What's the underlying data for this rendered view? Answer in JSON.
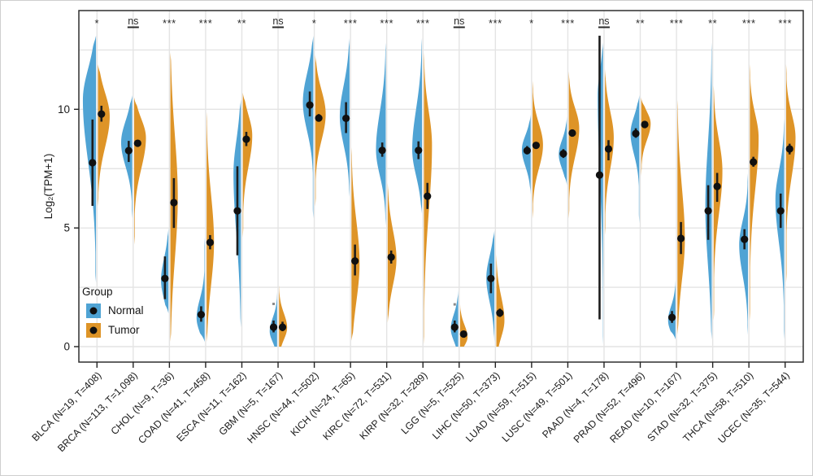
{
  "chart_data": {
    "type": "split-violin",
    "title": "",
    "xlabel": "",
    "ylabel": "Log₂(TPM+1)",
    "yticks": [
      0,
      5,
      10
    ],
    "ylim": [
      -0.65,
      14.2
    ],
    "grid": {
      "horizontal_every": 2.5,
      "vertical_per_group": true,
      "color": "#e4e4e4"
    },
    "point_color": "#101010",
    "outlier_color": "#8a8a8a",
    "legend": {
      "title": "Group",
      "position": "inside-bottom-left",
      "items": [
        {
          "label": "Normal",
          "color": "#4FA3D4"
        },
        {
          "label": "Tumor",
          "color": "#DE9427"
        }
      ]
    },
    "cohorts": [
      {
        "label": "BLCA (N=19, T=408)",
        "significance": "*",
        "normal": {
          "mean": 7.75,
          "ci": [
            5.93,
            9.57
          ],
          "violin": {
            "min": 2.7,
            "max": 13.1,
            "mode": 10.4,
            "spread_low": 2.6,
            "spread_high": 1.3,
            "width": 0.78
          }
        },
        "tumor": {
          "mean": 9.8,
          "ci": [
            9.48,
            10.15
          ],
          "violin": {
            "min": 5.9,
            "max": 11.9,
            "mode": 9.7,
            "spread_low": 1.3,
            "spread_high": 1.0,
            "width": 0.7
          }
        }
      },
      {
        "label": "BRCA (N=113, T=1,098)",
        "significance": "ns",
        "normal": {
          "mean": 8.26,
          "ci": [
            7.78,
            8.67
          ],
          "violin": {
            "min": 5.4,
            "max": 10.6,
            "mode": 8.6,
            "spread_low": 1.0,
            "spread_high": 0.9,
            "width": 0.66
          }
        },
        "tumor": {
          "mean": 8.57,
          "ci": [
            8.44,
            8.7
          ],
          "violin": {
            "min": 4.3,
            "max": 10.5,
            "mode": 8.8,
            "spread_low": 1.3,
            "spread_high": 0.8,
            "width": 0.7
          }
        }
      },
      {
        "label": "CHOL (N=9, T=36)",
        "significance": "***",
        "normal": {
          "mean": 2.87,
          "ci": [
            2.0,
            3.8
          ],
          "violin": {
            "min": 1.4,
            "max": 5.0,
            "mode": 2.8,
            "spread_low": 0.8,
            "spread_high": 0.9,
            "width": 0.44
          }
        },
        "tumor": {
          "mean": 6.07,
          "ci": [
            5.0,
            7.1
          ],
          "violin": {
            "min": 0.2,
            "max": 12.4,
            "mode": 6.3,
            "spread_low": 2.6,
            "spread_high": 2.6,
            "width": 0.44
          }
        }
      },
      {
        "label": "COAD (N=41, T=458)",
        "significance": "***",
        "normal": {
          "mean": 1.35,
          "ci": [
            1.05,
            1.7
          ],
          "violin": {
            "min": 0.2,
            "max": 4.6,
            "mode": 1.2,
            "spread_low": 0.6,
            "spread_high": 0.8,
            "width": 0.48
          }
        },
        "tumor": {
          "mean": 4.39,
          "ci": [
            4.1,
            4.7
          ],
          "violin": {
            "min": 0.2,
            "max": 9.9,
            "mode": 4.4,
            "spread_low": 1.8,
            "spread_high": 2.0,
            "width": 0.44
          }
        }
      },
      {
        "label": "ESCA (N=11, T=162)",
        "significance": "**",
        "normal": {
          "mean": 5.72,
          "ci": [
            3.85,
            7.6
          ],
          "violin": {
            "min": 0.8,
            "max": 10.4,
            "mode": 7.3,
            "spread_low": 2.6,
            "spread_high": 1.4,
            "width": 0.44
          }
        },
        "tumor": {
          "mean": 8.74,
          "ci": [
            8.45,
            9.05
          ],
          "violin": {
            "min": 4.6,
            "max": 10.7,
            "mode": 8.9,
            "spread_low": 1.3,
            "spread_high": 0.85,
            "width": 0.56
          }
        }
      },
      {
        "label": "GBM (N=5, T=167)",
        "significance": "ns",
        "normal": {
          "mean": 0.82,
          "ci": [
            0.6,
            1.1
          ],
          "outlier": 1.8,
          "violin": {
            "min": 0,
            "max": 2.3,
            "mode": 0.65,
            "spread_low": 0.45,
            "spread_high": 0.55,
            "width": 0.44
          }
        },
        "tumor": {
          "mean": 0.82,
          "ci": [
            0.65,
            1.05
          ],
          "violin": {
            "min": 0,
            "max": 2.6,
            "mode": 0.8,
            "spread_low": 0.5,
            "spread_high": 0.6,
            "width": 0.48
          }
        }
      },
      {
        "label": "HNSC (N=44, T=502)",
        "significance": "*",
        "normal": {
          "mean": 10.18,
          "ci": [
            9.7,
            10.75
          ],
          "violin": {
            "min": 5.4,
            "max": 13.1,
            "mode": 10.3,
            "spread_low": 1.2,
            "spread_high": 1.2,
            "width": 0.62
          }
        },
        "tumor": {
          "mean": 9.63,
          "ci": [
            9.5,
            9.8
          ],
          "violin": {
            "min": 5.9,
            "max": 12.3,
            "mode": 9.8,
            "spread_low": 1.1,
            "spread_high": 1.0,
            "width": 0.62
          }
        }
      },
      {
        "label": "KICH (N=24, T=65)",
        "significance": "***",
        "normal": {
          "mean": 9.62,
          "ci": [
            9.0,
            10.3
          ],
          "violin": {
            "min": 6.3,
            "max": 13.0,
            "mode": 9.7,
            "spread_low": 1.2,
            "spread_high": 1.3,
            "width": 0.58
          }
        },
        "tumor": {
          "mean": 3.61,
          "ci": [
            3.0,
            4.3
          ],
          "violin": {
            "min": 0.25,
            "max": 8.4,
            "mode": 3.5,
            "spread_low": 1.6,
            "spread_high": 1.8,
            "width": 0.48
          }
        }
      },
      {
        "label": "KIRC (N=72, T=531)",
        "significance": "***",
        "normal": {
          "mean": 8.27,
          "ci": [
            8.0,
            8.6
          ],
          "violin": {
            "min": 5.1,
            "max": 12.8,
            "mode": 8.3,
            "spread_low": 1.1,
            "spread_high": 1.6,
            "width": 0.58
          }
        },
        "tumor": {
          "mean": 3.77,
          "ci": [
            3.5,
            4.05
          ],
          "violin": {
            "min": 1.0,
            "max": 6.9,
            "mode": 3.7,
            "spread_low": 1.1,
            "spread_high": 1.2,
            "width": 0.52
          }
        }
      },
      {
        "label": "KIRP (N=32, T=289)",
        "significance": "***",
        "normal": {
          "mean": 8.27,
          "ci": [
            7.9,
            8.65
          ],
          "violin": {
            "min": 5.6,
            "max": 13.0,
            "mode": 8.3,
            "spread_low": 1.1,
            "spread_high": 1.7,
            "width": 0.58
          }
        },
        "tumor": {
          "mean": 6.34,
          "ci": [
            5.8,
            6.9
          ],
          "violin": {
            "min": 0.1,
            "max": 12.4,
            "mode": 8.5,
            "spread_low": 2.8,
            "spread_high": 1.4,
            "width": 0.48
          }
        }
      },
      {
        "label": "LGG (N=5, T=525)",
        "significance": "ns",
        "normal": {
          "mean": 0.82,
          "ci": [
            0.6,
            1.1
          ],
          "outlier": 1.78,
          "violin": {
            "min": 0,
            "max": 2.4,
            "mode": 0.75,
            "spread_low": 0.5,
            "spread_high": 0.6,
            "width": 0.44
          }
        },
        "tumor": {
          "mean": 0.53,
          "ci": [
            0.43,
            0.66
          ],
          "violin": {
            "min": 0,
            "max": 1.8,
            "mode": 0.4,
            "spread_low": 0.35,
            "spread_high": 0.5,
            "width": 0.44
          }
        }
      },
      {
        "label": "LIHC (N=50, T=373)",
        "significance": "***",
        "normal": {
          "mean": 2.87,
          "ci": [
            2.25,
            3.5
          ],
          "violin": {
            "min": 0.2,
            "max": 4.9,
            "mode": 2.9,
            "spread_low": 1.0,
            "spread_high": 0.9,
            "width": 0.48
          }
        },
        "tumor": {
          "mean": 1.42,
          "ci": [
            1.25,
            1.6
          ],
          "violin": {
            "min": 0,
            "max": 3.9,
            "mode": 1.1,
            "spread_low": 0.7,
            "spread_high": 1.0,
            "width": 0.48
          }
        }
      },
      {
        "label": "LUAD (N=59, T=515)",
        "significance": "*",
        "normal": {
          "mean": 8.26,
          "ci": [
            8.1,
            8.45
          ],
          "violin": {
            "min": 6.4,
            "max": 9.8,
            "mode": 8.3,
            "spread_low": 0.7,
            "spread_high": 0.6,
            "width": 0.52
          }
        },
        "tumor": {
          "mean": 8.48,
          "ci": [
            8.35,
            8.6
          ],
          "violin": {
            "min": 5.4,
            "max": 11.2,
            "mode": 8.5,
            "spread_low": 1.0,
            "spread_high": 0.9,
            "width": 0.62
          }
        }
      },
      {
        "label": "LUSC (N=49, T=501)",
        "significance": "***",
        "normal": {
          "mean": 8.13,
          "ci": [
            7.95,
            8.32
          ],
          "violin": {
            "min": 6.8,
            "max": 9.7,
            "mode": 8.1,
            "spread_low": 0.6,
            "spread_high": 0.6,
            "width": 0.48
          }
        },
        "tumor": {
          "mean": 9.0,
          "ci": [
            8.85,
            9.15
          ],
          "violin": {
            "min": 5.4,
            "max": 11.6,
            "mode": 9.2,
            "spread_low": 1.2,
            "spread_high": 0.85,
            "width": 0.62
          }
        }
      },
      {
        "label": "PAAD (N=4, T=178)",
        "significance": "ns",
        "normal": {
          "mean": 7.23,
          "ci": [
            1.15,
            13.1
          ],
          "violin": {
            "min": 0.1,
            "max": 12.8,
            "mode": 10.6,
            "spread_low": 3.4,
            "spread_high": 1.0,
            "width": 0.32
          }
        },
        "tumor": {
          "mean": 8.33,
          "ci": [
            7.85,
            8.7
          ],
          "violin": {
            "min": 4.7,
            "max": 11.7,
            "mode": 8.8,
            "spread_low": 1.3,
            "spread_high": 1.1,
            "width": 0.52
          }
        }
      },
      {
        "label": "PRAD (N=52, T=496)",
        "significance": "**",
        "normal": {
          "mean": 8.98,
          "ci": [
            8.8,
            9.2
          ],
          "violin": {
            "min": 5.2,
            "max": 10.6,
            "mode": 9.0,
            "spread_low": 0.9,
            "spread_high": 0.7,
            "width": 0.52
          }
        },
        "tumor": {
          "mean": 9.36,
          "ci": [
            9.25,
            9.48
          ],
          "violin": {
            "min": 7.2,
            "max": 10.5,
            "mode": 9.4,
            "spread_low": 0.7,
            "spread_high": 0.5,
            "width": 0.56
          }
        }
      },
      {
        "label": "READ (N=10, T=167)",
        "significance": "***",
        "normal": {
          "mean": 1.23,
          "ci": [
            1.0,
            1.5
          ],
          "violin": {
            "min": 0.3,
            "max": 2.8,
            "mode": 1.1,
            "spread_low": 0.5,
            "spread_high": 0.6,
            "width": 0.44
          }
        },
        "tumor": {
          "mean": 4.56,
          "ci": [
            3.9,
            5.25
          ],
          "violin": {
            "min": 0.5,
            "max": 10.4,
            "mode": 4.5,
            "spread_low": 1.7,
            "spread_high": 2.2,
            "width": 0.44
          }
        }
      },
      {
        "label": "STAD (N=32, T=375)",
        "significance": "**",
        "normal": {
          "mean": 5.72,
          "ci": [
            4.5,
            6.8
          ],
          "violin": {
            "min": 0.3,
            "max": 12.8,
            "mode": 5.9,
            "spread_low": 2.4,
            "spread_high": 2.6,
            "width": 0.38
          }
        },
        "tumor": {
          "mean": 6.75,
          "ci": [
            6.1,
            7.32
          ],
          "violin": {
            "min": 1.1,
            "max": 11.0,
            "mode": 7.4,
            "spread_low": 1.8,
            "spread_high": 1.3,
            "width": 0.52
          }
        }
      },
      {
        "label": "THCA (N=58, T=510)",
        "significance": "***",
        "normal": {
          "mean": 4.52,
          "ci": [
            4.1,
            4.95
          ],
          "violin": {
            "min": 0.5,
            "max": 7.3,
            "mode": 4.3,
            "spread_low": 1.3,
            "spread_high": 1.0,
            "width": 0.52
          }
        },
        "tumor": {
          "mean": 7.78,
          "ci": [
            7.58,
            8.0
          ],
          "violin": {
            "min": 1.1,
            "max": 11.9,
            "mode": 8.8,
            "spread_low": 2.2,
            "spread_high": 1.0,
            "width": 0.52
          }
        }
      },
      {
        "label": "UCEC (N=35, T=544)",
        "significance": "***",
        "normal": {
          "mean": 5.72,
          "ci": [
            5.0,
            6.45
          ],
          "violin": {
            "min": 0.3,
            "max": 9.6,
            "mode": 6.2,
            "spread_low": 1.8,
            "spread_high": 1.2,
            "width": 0.52
          }
        },
        "tumor": {
          "mean": 8.33,
          "ci": [
            8.1,
            8.55
          ],
          "violin": {
            "min": 2.7,
            "max": 11.9,
            "mode": 8.8,
            "spread_low": 1.6,
            "spread_high": 1.0,
            "width": 0.56
          }
        }
      }
    ]
  }
}
